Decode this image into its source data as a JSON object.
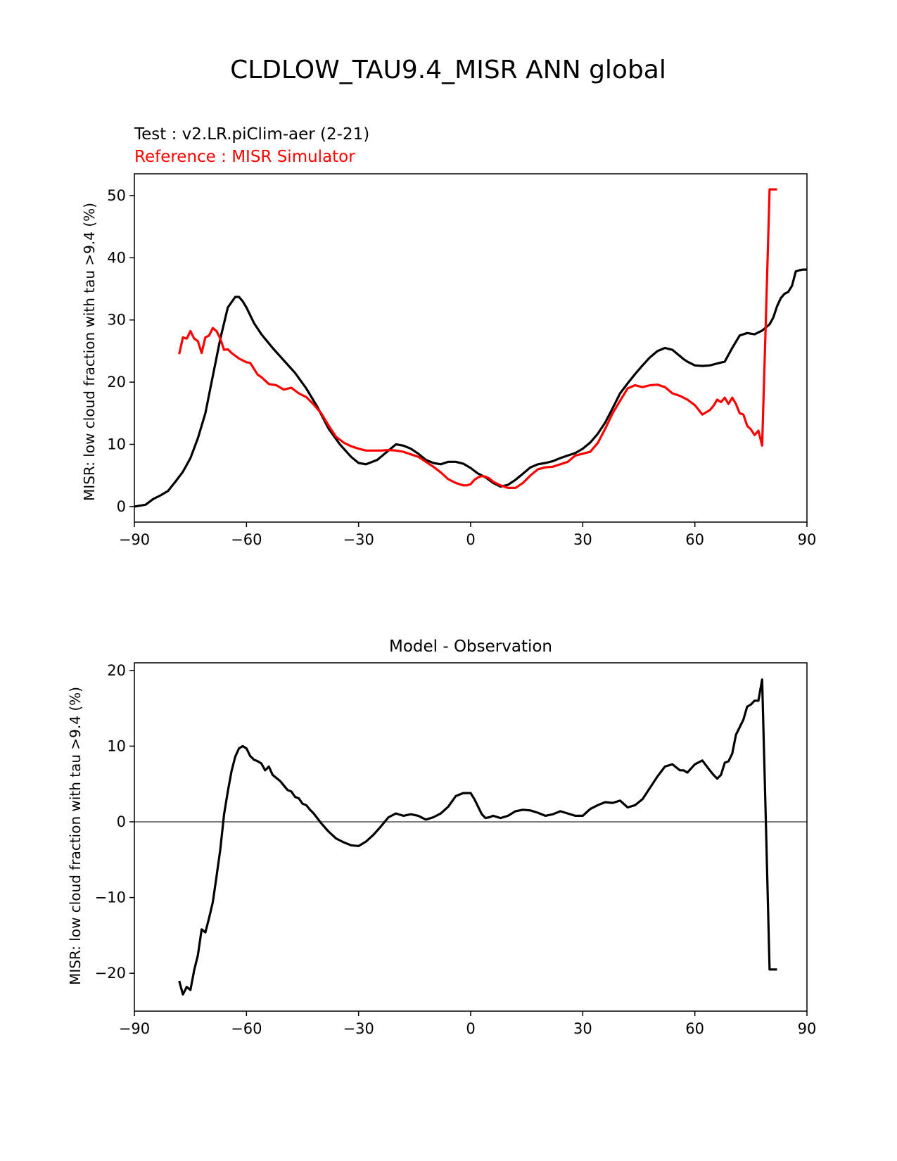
{
  "figure_title": "CLDLOW_TAU9.4_MISR ANN global",
  "chart_data": [
    {
      "type": "line",
      "subtitle_lines": [
        {
          "text": "Test : v2.LR.piClim-aer (2-21)",
          "color": "#000000"
        },
        {
          "text": "Reference : MISR Simulator",
          "color": "#ff0000"
        }
      ],
      "title": "",
      "xlabel": "",
      "ylabel": "MISR: low cloud fraction with tau >9.4 (%)",
      "xlim": [
        -90,
        90
      ],
      "ylim": [
        -2.5,
        53.5
      ],
      "xticks": [
        -90,
        -60,
        -30,
        0,
        30,
        60,
        90
      ],
      "xtick_labels": [
        "−90",
        "−60",
        "−30",
        "0",
        "30",
        "60",
        "90"
      ],
      "yticks": [
        0,
        10,
        20,
        30,
        40,
        50
      ],
      "ytick_labels": [
        "0",
        "10",
        "20",
        "30",
        "40",
        "50"
      ],
      "grid": false,
      "series": [
        {
          "color": "#000000",
          "x": [
            -90,
            -87,
            -85,
            -83,
            -81,
            -79,
            -77,
            -75,
            -73,
            -71,
            -69,
            -67,
            -65,
            -63,
            -62,
            -61,
            -60,
            -58,
            -56,
            -53,
            -50,
            -47,
            -44,
            -41,
            -38,
            -35,
            -32,
            -30,
            -28,
            -25,
            -22,
            -20,
            -18,
            -16,
            -14,
            -12,
            -10,
            -8,
            -6,
            -4,
            -2,
            0,
            2,
            4,
            6,
            8,
            10,
            12,
            14,
            16,
            18,
            20,
            22,
            24,
            26,
            28,
            30,
            32,
            34,
            36,
            38,
            40,
            42,
            44,
            46,
            48,
            50,
            52,
            54,
            56,
            57,
            58,
            60,
            62,
            64,
            66,
            68,
            70,
            72,
            74,
            76,
            78,
            80,
            81,
            82,
            83,
            84,
            85,
            86,
            87,
            88,
            89,
            90
          ],
          "y": [
            0,
            0.3,
            1.2,
            1.8,
            2.5,
            4,
            5.6,
            7.8,
            11,
            15,
            21,
            27,
            32,
            33.7,
            33.7,
            33,
            32,
            29.5,
            27.7,
            25.5,
            23.5,
            21.5,
            19,
            16,
            12.5,
            10,
            8,
            7,
            6.8,
            7.5,
            9,
            10,
            9.8,
            9.3,
            8.5,
            7.5,
            7,
            6.8,
            7.2,
            7.2,
            6.9,
            6.2,
            5.3,
            4.7,
            3.8,
            3.2,
            3.5,
            4.3,
            5.3,
            6.3,
            6.8,
            7,
            7.3,
            7.8,
            8.2,
            8.6,
            9.3,
            10.3,
            11.7,
            13.5,
            15.8,
            18.2,
            19.8,
            21.3,
            22.7,
            24,
            25,
            25.5,
            25.2,
            24.2,
            23.7,
            23.3,
            22.7,
            22.6,
            22.7,
            23,
            23.3,
            25.5,
            27.5,
            27.9,
            27.7,
            28.3,
            29.3,
            30.4,
            32.2,
            33.5,
            34.2,
            34.5,
            35.5,
            37.8,
            38,
            38.1,
            38.1
          ]
        },
        {
          "color": "#ff0000",
          "x": [
            -78,
            -77,
            -76,
            -75,
            -74,
            -73,
            -72,
            -71,
            -70,
            -69,
            -68,
            -67,
            -66,
            -65,
            -64,
            -62,
            -60,
            -59,
            -57,
            -56,
            -54,
            -52,
            -50,
            -48,
            -46,
            -44,
            -42,
            -40,
            -38,
            -36,
            -34,
            -32,
            -30,
            -28,
            -26,
            -24,
            -22,
            -20,
            -18,
            -16,
            -14,
            -12,
            -10,
            -8,
            -6,
            -4,
            -2,
            -1,
            0,
            1,
            2,
            3,
            4,
            5,
            6,
            8,
            10,
            12,
            14,
            16,
            18,
            20,
            22,
            24,
            26,
            28,
            30,
            32,
            34,
            36,
            38,
            40,
            42,
            44,
            46,
            48,
            50,
            52,
            54,
            56,
            58,
            60,
            62,
            64,
            65,
            66,
            67,
            68,
            69,
            70,
            71,
            72,
            73,
            74,
            75,
            76,
            77,
            78,
            79,
            80,
            81,
            82
          ],
          "y": [
            24.5,
            27.2,
            27,
            28.2,
            27,
            26.6,
            24.7,
            27.2,
            27.5,
            28.7,
            28.2,
            27,
            25.2,
            25.3,
            24.7,
            23.8,
            23.2,
            23.1,
            21.2,
            20.8,
            19.7,
            19.5,
            18.8,
            19.1,
            18.2,
            17.6,
            16.4,
            15,
            13,
            11.2,
            10.3,
            9.7,
            9.3,
            9,
            9,
            9,
            9.1,
            9,
            8.8,
            8.4,
            8,
            7.2,
            6.4,
            5.5,
            4.4,
            3.8,
            3.4,
            3.4,
            3.6,
            4.3,
            4.7,
            4.9,
            4.8,
            4.5,
            4,
            3.4,
            3,
            3,
            3.8,
            5,
            6,
            6.3,
            6.4,
            6.8,
            7.2,
            8.2,
            8.5,
            8.8,
            10.2,
            12.5,
            15,
            17,
            19,
            19.5,
            19.2,
            19.5,
            19.6,
            19.2,
            18.2,
            17.8,
            17.2,
            16.3,
            14.8,
            15.5,
            16.2,
            17.2,
            16.8,
            17.5,
            16.5,
            17.5,
            16.5,
            15,
            14.8,
            13,
            12.4,
            11.5,
            12.2,
            9.8,
            30,
            51,
            51,
            51
          ]
        }
      ]
    },
    {
      "type": "line",
      "title": "Model - Observation",
      "xlabel": "",
      "ylabel": "MISR: low cloud fraction with tau >9.4 (%)",
      "xlim": [
        -90,
        90
      ],
      "ylim": [
        -25,
        21
      ],
      "xticks": [
        -90,
        -60,
        -30,
        0,
        30,
        60,
        90
      ],
      "xtick_labels": [
        "−90",
        "−60",
        "−30",
        "0",
        "30",
        "60",
        "90"
      ],
      "yticks": [
        -20,
        -10,
        0,
        10,
        20
      ],
      "ytick_labels": [
        "−20",
        "−10",
        "0",
        "10",
        "20"
      ],
      "grid": false,
      "zero_line_color": "#808080",
      "series": [
        {
          "color": "#000000",
          "x": [
            -78,
            -77,
            -76,
            -75,
            -74,
            -73,
            -72,
            -71,
            -70,
            -69,
            -68,
            -67,
            -66,
            -65,
            -64,
            -63,
            -62,
            -61,
            -60,
            -59,
            -58,
            -57,
            -56,
            -55,
            -54,
            -53,
            -52,
            -51,
            -50,
            -49,
            -48,
            -47,
            -46,
            -45,
            -44,
            -43,
            -42,
            -40,
            -38,
            -36,
            -34,
            -32,
            -30,
            -28,
            -26,
            -24,
            -22,
            -20,
            -18,
            -16,
            -14,
            -12,
            -10,
            -8,
            -6,
            -4,
            -2,
            0,
            1,
            2,
            3,
            4,
            5,
            6,
            8,
            10,
            12,
            14,
            16,
            18,
            20,
            22,
            24,
            26,
            28,
            30,
            32,
            34,
            36,
            38,
            40,
            42,
            44,
            46,
            48,
            50,
            52,
            54,
            56,
            57,
            58,
            60,
            62,
            64,
            65,
            66,
            67,
            68,
            69,
            70,
            71,
            72,
            73,
            74,
            75,
            76,
            77,
            78,
            79,
            80,
            81,
            82
          ],
          "y": [
            -21,
            -22.8,
            -21.8,
            -22.2,
            -19.6,
            -17.6,
            -14.2,
            -14.6,
            -12.7,
            -10.6,
            -7.2,
            -3.6,
            1,
            4,
            6.7,
            8.6,
            9.7,
            10,
            9.7,
            8.7,
            8.2,
            8,
            7.7,
            6.8,
            7.3,
            6.2,
            5.8,
            5.4,
            4.8,
            4.2,
            4,
            3.3,
            3.1,
            2.4,
            2.2,
            1.6,
            1.1,
            -0.2,
            -1.3,
            -2.2,
            -2.7,
            -3.1,
            -3.2,
            -2.6,
            -1.7,
            -0.6,
            0.6,
            1.1,
            0.8,
            1,
            0.8,
            0.3,
            0.6,
            1.1,
            2,
            3.4,
            3.8,
            3.8,
            3,
            2,
            1,
            0.5,
            0.6,
            0.8,
            0.5,
            0.8,
            1.4,
            1.6,
            1.5,
            1.2,
            0.8,
            1,
            1.4,
            1.1,
            0.8,
            0.8,
            1.7,
            2.2,
            2.6,
            2.5,
            2.8,
            1.9,
            2.2,
            3,
            4.5,
            6,
            7.3,
            7.6,
            6.8,
            6.8,
            6.5,
            7.6,
            8.1,
            6.8,
            6.2,
            5.7,
            6.2,
            7.8,
            8,
            9,
            11.5,
            12.5,
            13.5,
            15.2,
            15.5,
            16,
            16,
            18.8,
            0,
            -19.5,
            -19.5,
            -19.5
          ]
        }
      ]
    }
  ]
}
